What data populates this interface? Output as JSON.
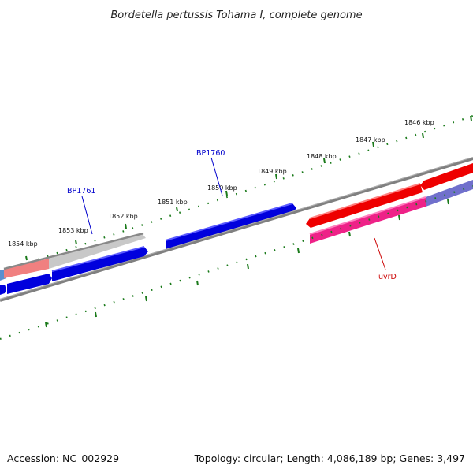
{
  "title": "Bordetella pertussis Tohama I, complete genome",
  "footer": {
    "accession": "Accession: NC_002929",
    "summary": "Topology: circular; Length: 4,086,189 bp; Genes: 3,497"
  },
  "ruler_labels": [
    "1854 kbp",
    "1853 kbp",
    "1852 kbp",
    "1851 kbp",
    "1850 kbp",
    "1849 kbp",
    "1848 kbp",
    "1847 kbp",
    "1846 kbp"
  ],
  "gene_labels": [
    {
      "text": "BP1761",
      "color": "#0000cc"
    },
    {
      "text": "BP1760",
      "color": "#0000cc"
    },
    {
      "text": "uvrD",
      "color": "#cc0000"
    }
  ],
  "colors": {
    "backbone": "#808080",
    "ruler_ticks": "#1a7a1a",
    "gene_forward": "#0000dd",
    "gene_reverse": "#ee0000",
    "gene_pink": "#ee2288",
    "gene_light_red": "#f08080",
    "gene_grey": "#c8c8c8",
    "gene_lavender": "#7070cc"
  }
}
